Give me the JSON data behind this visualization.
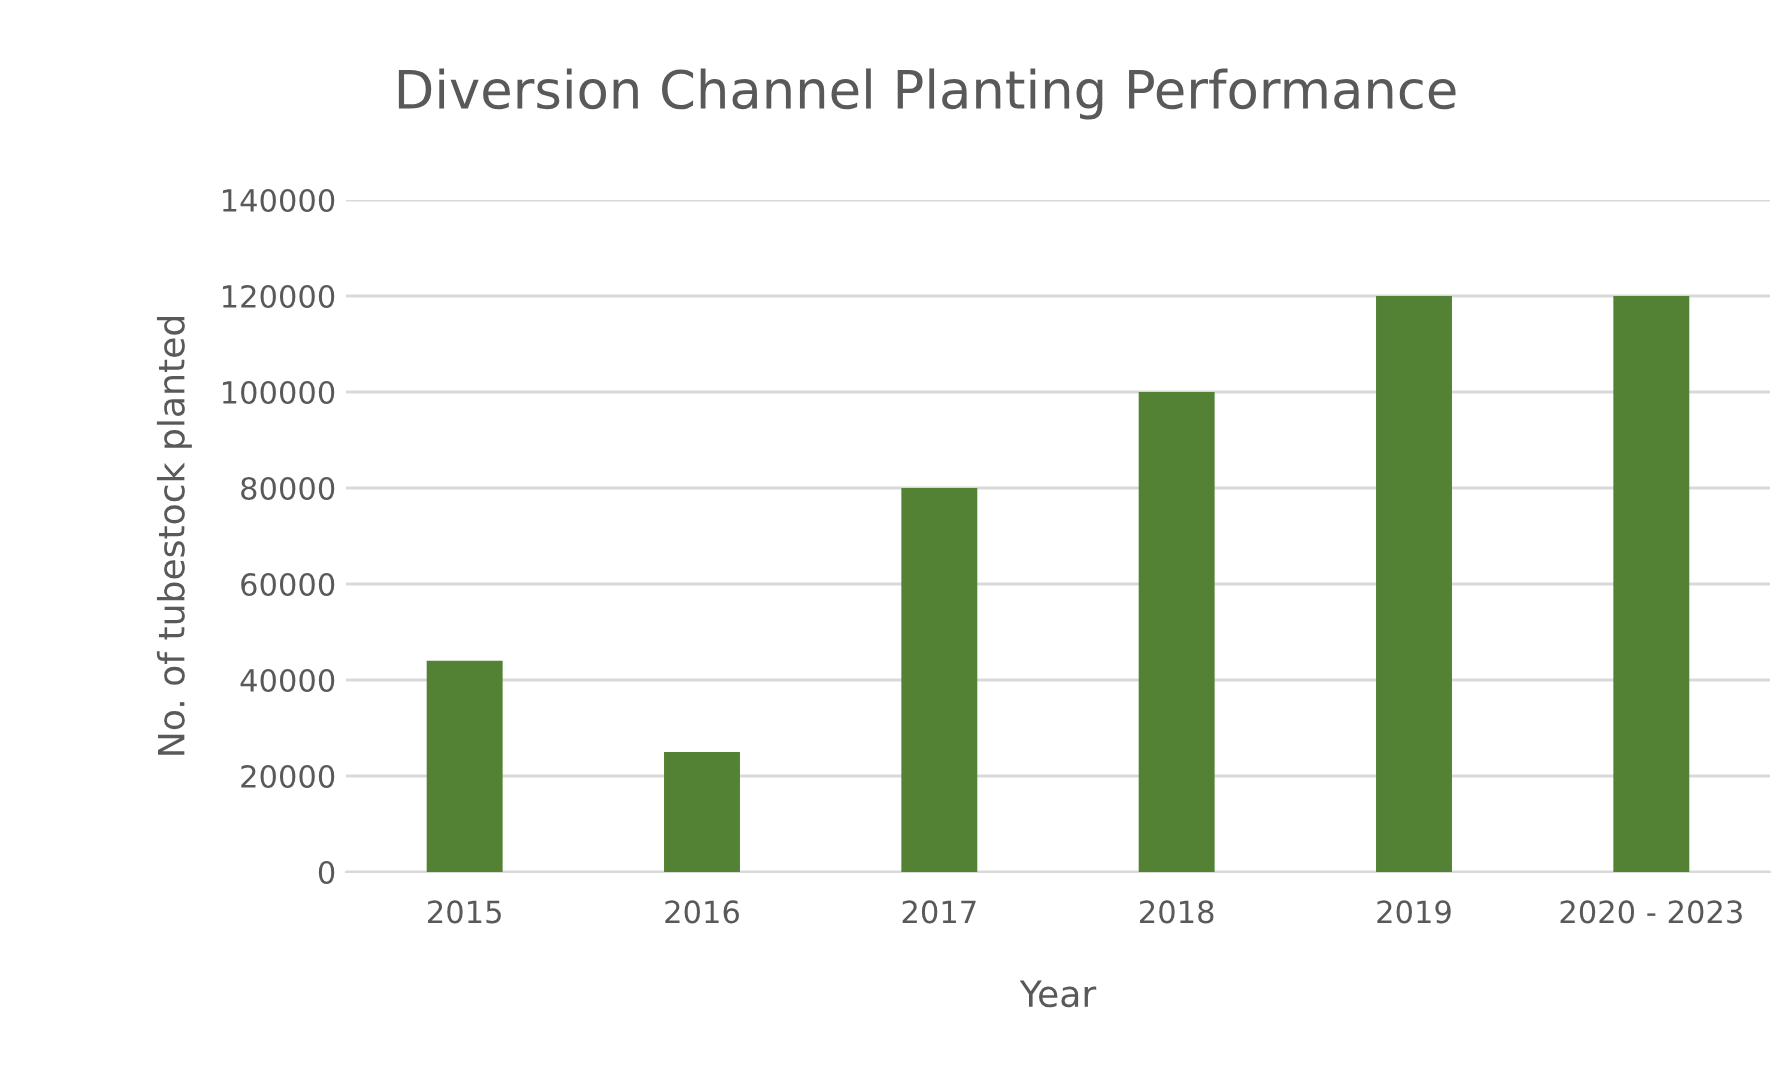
{
  "chart_data": {
    "type": "bar",
    "title": "Diversion Channel Planting Performance",
    "xlabel": "Year",
    "ylabel": "No. of tubestock planted",
    "categories": [
      "2015",
      "2016",
      "2017",
      "2018",
      "2019",
      "2020 - 2023"
    ],
    "values": [
      44000,
      25000,
      80000,
      100000,
      120000,
      120000
    ],
    "color": "#548235",
    "ylim": [
      0,
      140000
    ],
    "yticks": [
      0,
      20000,
      40000,
      60000,
      80000,
      100000,
      120000,
      140000
    ],
    "grid": "y"
  }
}
